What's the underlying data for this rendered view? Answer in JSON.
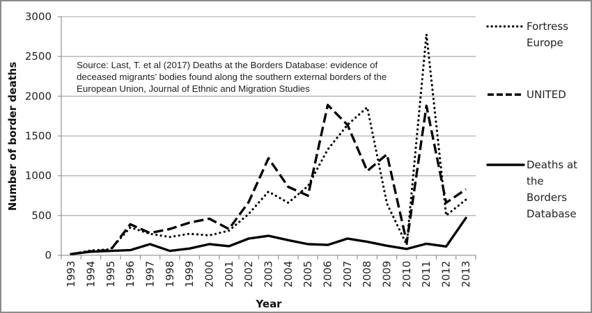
{
  "chart_data": {
    "type": "line",
    "title": "",
    "xlabel": "Year",
    "ylabel": "Number of border deaths",
    "ylim": [
      0,
      3000
    ],
    "yticks": [
      "0",
      "500",
      "1000",
      "1500",
      "2000",
      "2500",
      "3000"
    ],
    "ytick_values": [
      0,
      500,
      1000,
      1500,
      2000,
      2500,
      3000
    ],
    "grid": "horizontal",
    "legend_position": "right",
    "x": [
      "1993",
      "1994",
      "1995",
      "1996",
      "1997",
      "1998",
      "1999",
      "2000",
      "2001",
      "2002",
      "2003",
      "2004",
      "2005",
      "2006",
      "2007",
      "2008",
      "2009",
      "2010",
      "2011",
      "2012",
      "2013"
    ],
    "series": [
      {
        "name": "Fortress Europe",
        "legend_lines": [
          "Fortress",
          "Europe"
        ],
        "style": "dotted",
        "values": [
          15,
          60,
          75,
          350,
          270,
          230,
          270,
          250,
          310,
          520,
          800,
          660,
          870,
          1330,
          1640,
          1860,
          650,
          130,
          2780,
          500,
          700
        ]
      },
      {
        "name": "UNITED",
        "legend_lines": [
          "UNITED"
        ],
        "style": "dashed",
        "values": [
          15,
          50,
          65,
          390,
          280,
          330,
          410,
          460,
          330,
          670,
          1220,
          860,
          750,
          1890,
          1640,
          1060,
          1270,
          160,
          1880,
          660,
          830
        ]
      },
      {
        "name": "Deaths at the Borders Database",
        "legend_lines": [
          "Deaths at",
          "the",
          "Borders",
          "Database"
        ],
        "style": "solid",
        "values": [
          15,
          45,
          55,
          65,
          140,
          55,
          85,
          140,
          115,
          210,
          245,
          190,
          140,
          130,
          210,
          170,
          120,
          80,
          145,
          110,
          470
        ]
      }
    ],
    "annotation": {
      "lines": [
        "Source: Last, T. et al (2017) Deaths at the Borders Database: evidence of",
        "deceased migrants’ bodies found along the southern external borders of the",
        "European Union, Journal of Ethnic and Migration Studies"
      ]
    },
    "colors": {
      "line": "#000000",
      "grid": "#b3b3b3",
      "axis": "#9a9a9a",
      "frame": "#8c8c8c"
    }
  }
}
